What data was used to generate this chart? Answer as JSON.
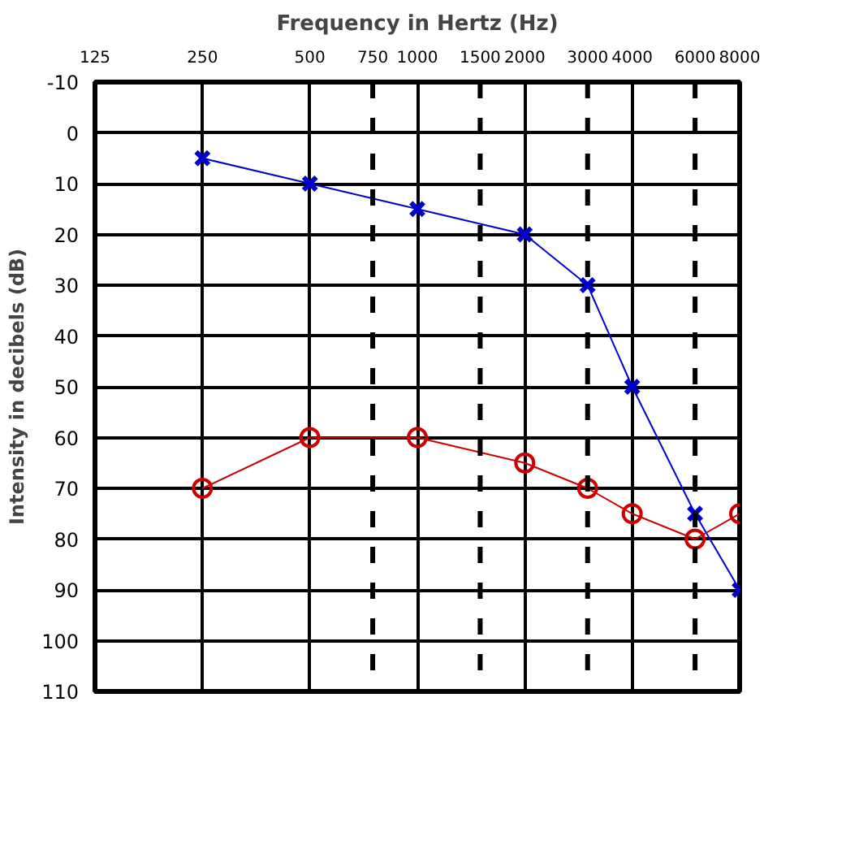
{
  "chart_data": {
    "type": "line",
    "title": "Frequency in Hertz (Hz)",
    "ylabel": "Intensity in decibels (dB)",
    "log": "x",
    "xlim": [
      125,
      8000
    ],
    "xticks": [
      125,
      250,
      500,
      750,
      1000,
      1500,
      2000,
      3000,
      4000,
      6000,
      8000
    ],
    "ylim": [
      110,
      -10
    ],
    "yticks": [
      -10,
      0,
      10,
      20,
      30,
      40,
      50,
      60,
      70,
      80,
      90,
      100,
      110
    ],
    "grid": true,
    "series": [
      {
        "color": "#0000cc",
        "marker": "cross",
        "x": [
          250,
          500,
          1000,
          2000,
          3000,
          4000,
          6000,
          8000
        ],
        "values": [
          5,
          10,
          15,
          20,
          30,
          50,
          75,
          90
        ]
      },
      {
        "color": "#cc0000",
        "marker": "circle",
        "x": [
          250,
          500,
          1000,
          2000,
          3000,
          4000,
          6000,
          8000
        ],
        "values": [
          70,
          60,
          60,
          65,
          70,
          75,
          80,
          75
        ]
      }
    ]
  }
}
